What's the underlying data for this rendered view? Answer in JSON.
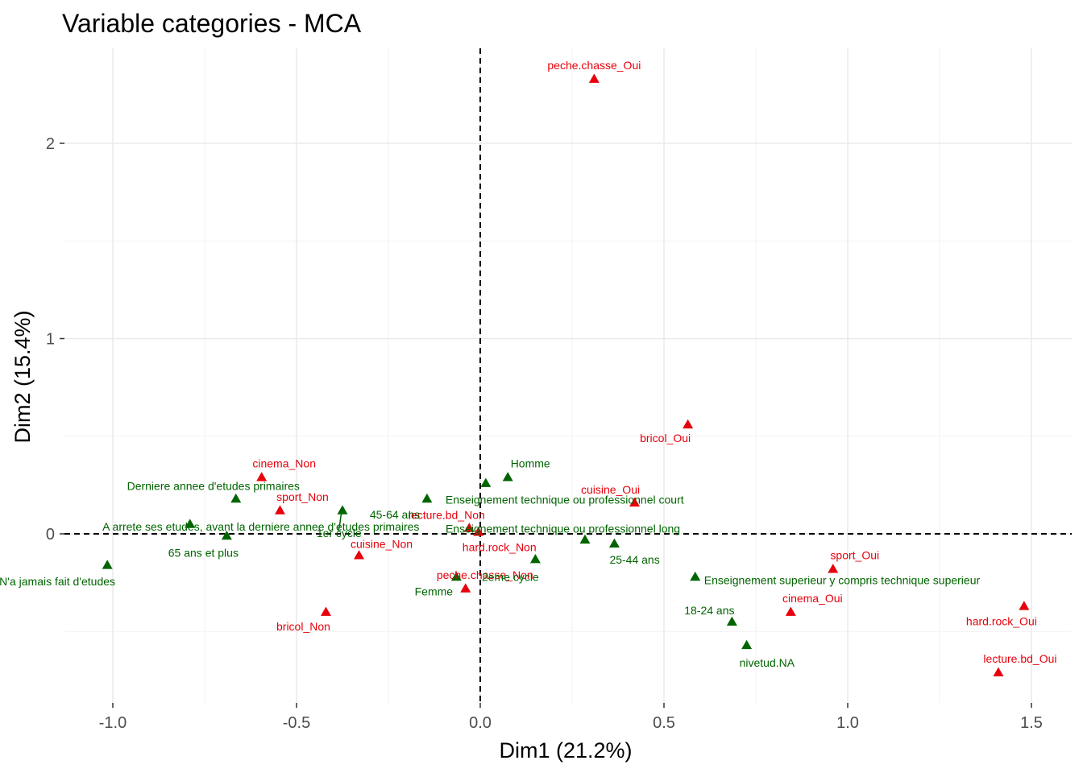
{
  "chart_data": {
    "type": "scatter",
    "title": "Variable categories - MCA",
    "xlabel": "Dim1 (21.2%)",
    "ylabel": "Dim2 (15.4%)",
    "xlim": [
      -1.2,
      1.6
    ],
    "ylim": [
      -0.87,
      2.4
    ],
    "xticks": [
      -1.0,
      -0.5,
      0.0,
      0.5,
      1.0,
      1.5
    ],
    "xtick_labels": [
      "-1.0",
      "-0.5",
      "0.0",
      "0.5",
      "1.0",
      "1.5"
    ],
    "yticks": [
      0,
      1,
      2
    ],
    "ytick_labels": [
      "0",
      "1",
      "2"
    ],
    "grid": true,
    "reference_lines": {
      "x": 0,
      "y": 0,
      "style": "dashed"
    },
    "colors": {
      "group_a": "#e8000b",
      "group_b": "#006400"
    },
    "points": [
      {
        "label": "peche.chasse_Oui",
        "x": 0.31,
        "y": 2.33,
        "group": "a"
      },
      {
        "label": "bricol_Oui",
        "x": 0.565,
        "y": 0.56,
        "group": "a"
      },
      {
        "label": "cinema_Non",
        "x": -0.595,
        "y": 0.29,
        "group": "a"
      },
      {
        "label": "sport_Non",
        "x": -0.545,
        "y": 0.12,
        "group": "a"
      },
      {
        "label": "cuisine_Oui",
        "x": 0.42,
        "y": 0.16,
        "group": "a"
      },
      {
        "label": "lecture.bd_Non",
        "x": -0.03,
        "y": 0.03,
        "group": "a"
      },
      {
        "label": "hard.rock_Non",
        "x": -0.005,
        "y": 0.01,
        "group": "a"
      },
      {
        "label": "cuisine_Non",
        "x": -0.33,
        "y": -0.11,
        "group": "a"
      },
      {
        "label": "peche.chasse_Non",
        "x": -0.04,
        "y": -0.28,
        "group": "a"
      },
      {
        "label": "bricol_Non",
        "x": -0.42,
        "y": -0.4,
        "group": "a"
      },
      {
        "label": "sport_Oui",
        "x": 0.96,
        "y": -0.18,
        "group": "a"
      },
      {
        "label": "cinema_Oui",
        "x": 0.845,
        "y": -0.4,
        "group": "a"
      },
      {
        "label": "hard.rock_Oui",
        "x": 1.48,
        "y": -0.37,
        "group": "a"
      },
      {
        "label": "lecture.bd_Oui",
        "x": 1.41,
        "y": -0.71,
        "group": "a"
      },
      {
        "label": "Homme",
        "x": 0.075,
        "y": 0.29,
        "group": "b"
      },
      {
        "label": "Femme",
        "x": -0.065,
        "y": -0.22,
        "group": "b"
      },
      {
        "label": "Derniere annee d'etudes primaires",
        "x": -0.665,
        "y": 0.18,
        "group": "b"
      },
      {
        "label": "A arrete ses etudes, avant la derniere annee d'etudes primaires",
        "x": -0.79,
        "y": 0.05,
        "group": "b"
      },
      {
        "label": "65 ans et plus",
        "x": -0.69,
        "y": -0.01,
        "group": "b"
      },
      {
        "label": "N'a jamais fait d'etudes",
        "x": -1.015,
        "y": -0.16,
        "group": "b"
      },
      {
        "label": "45-64 ans",
        "x": -0.375,
        "y": 0.12,
        "group": "b"
      },
      {
        "label": "1er cycle",
        "x": 0.015,
        "y": 0.26,
        "group": "b"
      },
      {
        "label": "Enseignement technique ou professionnel court",
        "x": -0.145,
        "y": 0.18,
        "group": "b"
      },
      {
        "label": "Enseignement technique ou professionnel long",
        "x": 0.285,
        "y": -0.03,
        "group": "b"
      },
      {
        "label": "25-44 ans",
        "x": 0.365,
        "y": -0.05,
        "group": "b"
      },
      {
        "label": "2eme cycle",
        "x": 0.15,
        "y": -0.13,
        "group": "b"
      },
      {
        "label": "Enseignement superieur y compris technique superieur",
        "x": 0.585,
        "y": -0.22,
        "group": "b"
      },
      {
        "label": "18-24 ans",
        "x": 0.685,
        "y": -0.45,
        "group": "b"
      },
      {
        "label": "nivetud.NA",
        "x": 0.725,
        "y": -0.57,
        "group": "b"
      }
    ]
  }
}
